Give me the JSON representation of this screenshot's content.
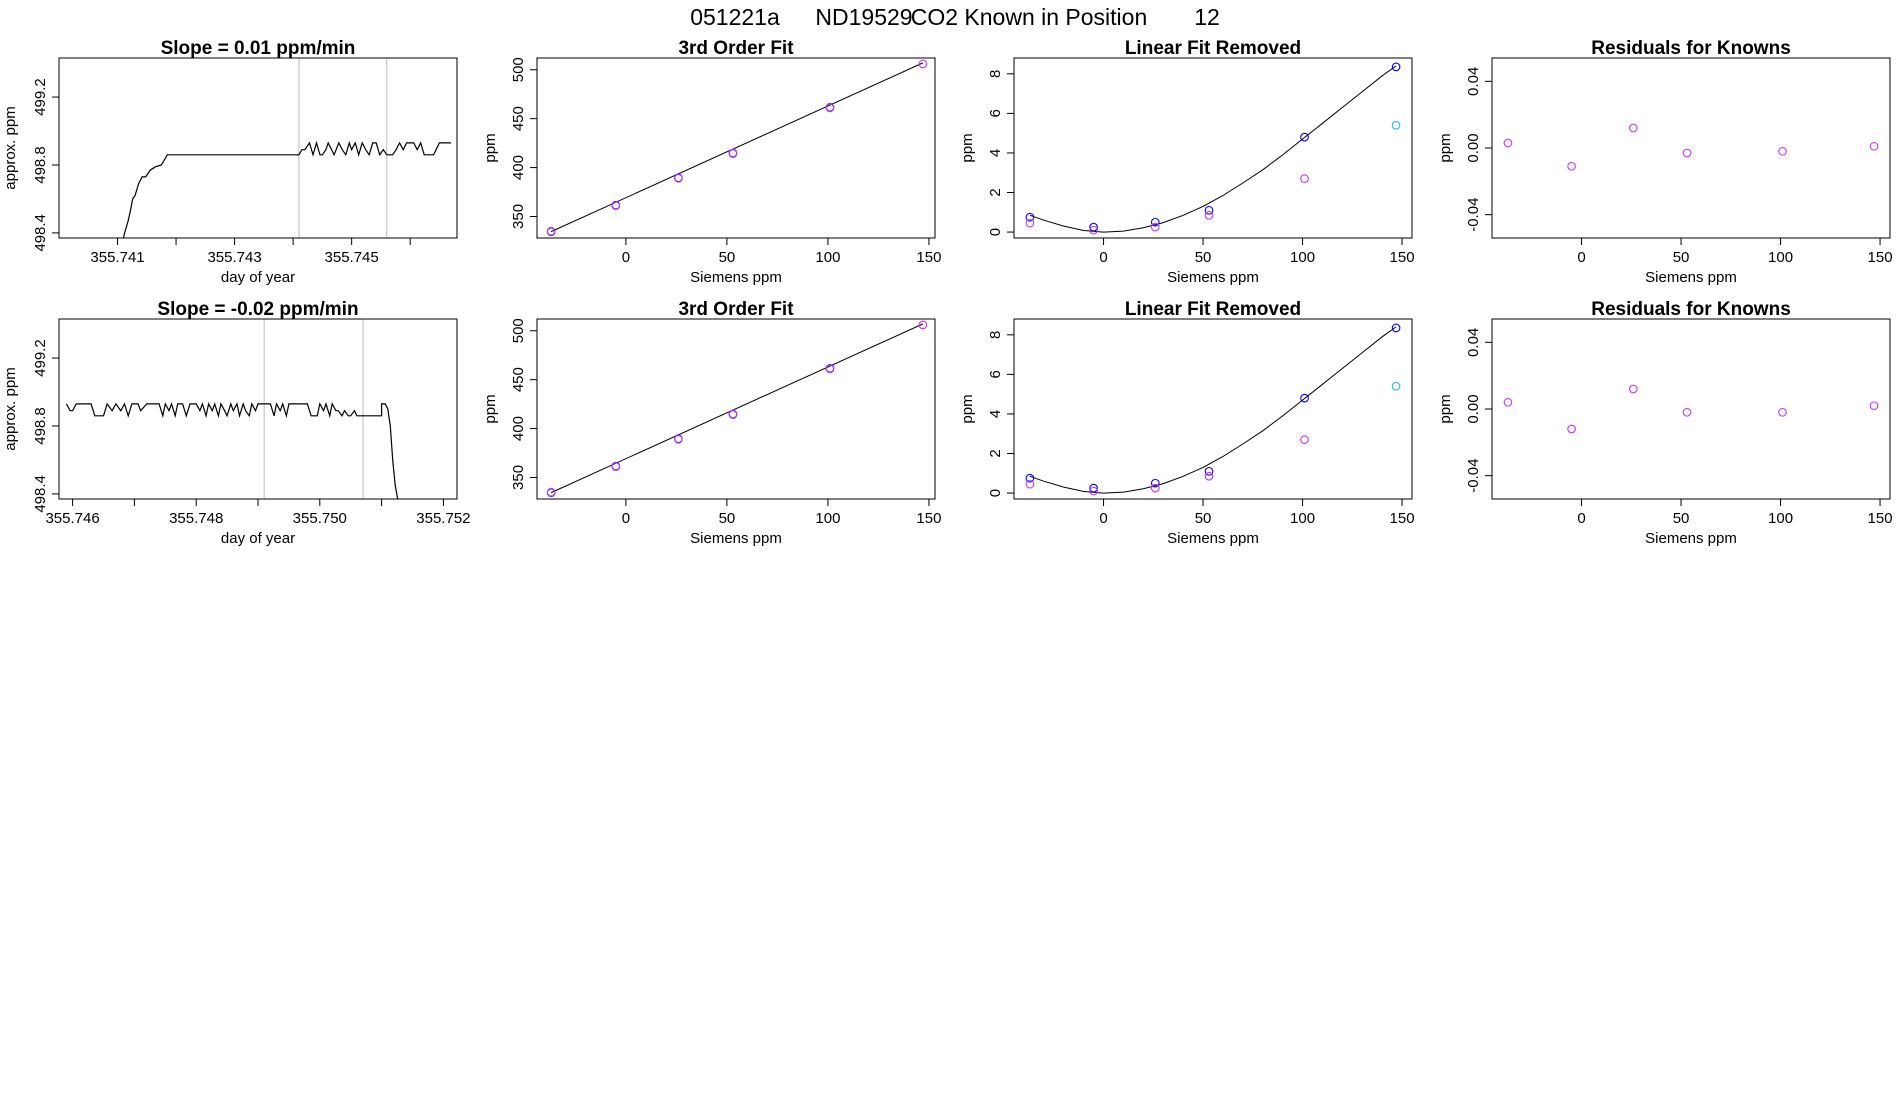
{
  "figure": {
    "title_parts": [
      "051221a",
      "ND19529",
      "CO2 Known in Position",
      "12"
    ]
  },
  "colors": {
    "line": "#000000",
    "guide": "#bebebe",
    "blue": "#0000ff",
    "magenta": "#cc33ff",
    "cyan": "#22bbee"
  },
  "chart_data": [
    {
      "type": "line",
      "title": "Slope =  0.01  ppm/min",
      "xlabel": "day of year",
      "ylabel": "approx. ppm",
      "xlim": [
        355.74,
        355.7468
      ],
      "ylim": [
        498.37,
        499.43
      ],
      "xticks": [
        355.741,
        355.742,
        355.743,
        355.744,
        355.745,
        355.746
      ],
      "xtick_labels": [
        "355.741",
        "",
        "355.743",
        "",
        "355.745",
        ""
      ],
      "yticks": [
        498.4,
        498.8,
        499.2
      ],
      "ytick_labels": [
        "498.4",
        "498.8",
        "499.2"
      ],
      "vlines": [
        355.7441,
        355.7456
      ],
      "series": [
        {
          "name": "CO2 trace",
          "x": [
            355.7411,
            355.74112,
            355.74118,
            355.74122,
            355.74126,
            355.7413,
            355.74136,
            355.74142,
            355.74148,
            355.74156,
            355.74165,
            355.74175,
            355.74185,
            355.742,
            355.7424,
            355.7428,
            355.7432,
            355.7436,
            355.7441,
            355.74415,
            355.7442,
            355.74428,
            355.74434,
            355.7444,
            355.74446,
            355.7445,
            355.74456,
            355.7446,
            355.7447,
            355.74478,
            355.74484,
            355.7449,
            355.74496,
            355.745,
            355.74506,
            355.74512,
            355.74518,
            355.74524,
            355.7453,
            355.74536,
            355.74542,
            355.74548,
            355.74554,
            355.7456,
            355.74566,
            355.7457,
            355.74576,
            355.74582,
            355.74588,
            355.74594,
            355.746,
            355.74606,
            355.74612,
            355.74618,
            355.74624,
            355.7463,
            355.74636,
            355.7464,
            355.7465,
            355.7466,
            355.7467
          ],
          "y": [
            498.37,
            498.4,
            498.47,
            498.53,
            498.6,
            498.62,
            498.69,
            498.73,
            498.73,
            498.77,
            498.79,
            498.8,
            498.86,
            498.86,
            498.86,
            498.86,
            498.86,
            498.86,
            498.86,
            498.89,
            498.89,
            498.93,
            498.86,
            498.93,
            498.86,
            498.86,
            498.89,
            498.93,
            498.86,
            498.93,
            498.89,
            498.86,
            498.93,
            498.89,
            498.93,
            498.86,
            498.93,
            498.89,
            498.86,
            498.93,
            498.93,
            498.86,
            498.89,
            498.86,
            498.86,
            498.86,
            498.89,
            498.93,
            498.89,
            498.93,
            498.93,
            498.93,
            498.89,
            498.93,
            498.86,
            498.86,
            498.86,
            498.86,
            498.93,
            498.93,
            498.93
          ]
        }
      ]
    },
    {
      "type": "scatter",
      "title": "3rd Order Fit",
      "xlabel": "Siemens ppm",
      "ylabel": "ppm",
      "xlim": [
        -44,
        153
      ],
      "ylim": [
        328,
        512
      ],
      "xticks": [
        0,
        50,
        100,
        150
      ],
      "xtick_labels": [
        "0",
        "50",
        "100",
        "150"
      ],
      "yticks": [
        350,
        400,
        450,
        500
      ],
      "ytick_labels": [
        "350",
        "400",
        "450",
        "500"
      ],
      "fit_line": {
        "x": [
          -37,
          147
        ],
        "y": [
          334.5,
          507
        ]
      },
      "series": [
        {
          "name": "blue",
          "color": "blue",
          "x": [
            -37,
            -5,
            26,
            53,
            101
          ],
          "y": [
            334.5,
            361.5,
            389.5,
            414.5,
            461.5
          ]
        },
        {
          "name": "magenta",
          "color": "magenta",
          "x": [
            -37,
            -5,
            26,
            53,
            101,
            147
          ],
          "y": [
            335,
            361,
            389,
            415,
            461,
            506
          ]
        }
      ]
    },
    {
      "type": "scatter",
      "title": "Linear Fit Removed",
      "xlabel": "Siemens ppm",
      "ylabel": "ppm",
      "xlim": [
        -45,
        155
      ],
      "ylim": [
        -0.3,
        8.8
      ],
      "xticks": [
        0,
        50,
        100,
        150
      ],
      "xtick_labels": [
        "0",
        "50",
        "100",
        "150"
      ],
      "yticks": [
        0,
        2,
        4,
        6,
        8
      ],
      "ytick_labels": [
        "0",
        "2",
        "4",
        "6",
        "8"
      ],
      "fit_curve": {
        "x": [
          -37,
          -30,
          -20,
          -10,
          0,
          10,
          20,
          30,
          40,
          50,
          60,
          70,
          80,
          90,
          100,
          110,
          120,
          130,
          140,
          147
        ],
        "y": [
          0.85,
          0.6,
          0.3,
          0.08,
          0.0,
          0.05,
          0.22,
          0.48,
          0.85,
          1.3,
          1.85,
          2.48,
          3.15,
          3.9,
          4.7,
          5.5,
          6.3,
          7.1,
          7.9,
          8.4
        ]
      },
      "series": [
        {
          "name": "blue",
          "color": "blue",
          "x": [
            -37,
            -5,
            26,
            53,
            101,
            147
          ],
          "y": [
            0.75,
            0.25,
            0.5,
            1.1,
            4.8,
            8.35
          ]
        },
        {
          "name": "magenta",
          "color": "magenta",
          "x": [
            -37,
            -5,
            26,
            53,
            101
          ],
          "y": [
            0.45,
            0.1,
            0.25,
            0.85,
            2.7
          ]
        },
        {
          "name": "cyan",
          "color": "cyan",
          "x": [
            147
          ],
          "y": [
            5.4
          ]
        }
      ]
    },
    {
      "type": "scatter",
      "title": "Residuals for Knowns",
      "xlabel": "Siemens ppm",
      "ylabel": "ppm",
      "xlim": [
        -45,
        155
      ],
      "ylim": [
        -0.054,
        0.054
      ],
      "xticks": [
        0,
        50,
        100,
        150
      ],
      "xtick_labels": [
        "0",
        "50",
        "100",
        "150"
      ],
      "yticks": [
        -0.04,
        0.0,
        0.04
      ],
      "ytick_labels": [
        "-0.04",
        "0.00",
        "0.04"
      ],
      "series": [
        {
          "name": "magenta",
          "color": "magenta",
          "x": [
            -37,
            -5,
            26,
            53,
            101,
            147
          ],
          "y": [
            0.003,
            -0.011,
            0.012,
            -0.003,
            -0.002,
            0.001
          ]
        }
      ]
    },
    {
      "type": "line",
      "title": "Slope =  -0.02  ppm/min",
      "xlabel": "day of year",
      "ylabel": "approx. ppm",
      "xlim": [
        355.74578,
        355.75222
      ],
      "ylim": [
        498.37,
        499.43
      ],
      "xticks": [
        355.746,
        355.747,
        355.748,
        355.749,
        355.75,
        355.751,
        355.752
      ],
      "xtick_labels": [
        "355.746",
        "",
        "355.748",
        "",
        "355.750",
        "",
        "355.752"
      ],
      "yticks": [
        498.4,
        498.8,
        499.2
      ],
      "ytick_labels": [
        "498.4",
        "498.8",
        "499.2"
      ],
      "vlines": [
        355.7491,
        355.7507
      ],
      "series": [
        {
          "name": "CO2 trace",
          "x": [
            355.7459,
            355.74596,
            355.746,
            355.74606,
            355.74612,
            355.7462,
            355.7463,
            355.74636,
            355.7465,
            355.74656,
            355.74664,
            355.7467,
            355.74678,
            355.74684,
            355.7469,
            355.74696,
            355.747,
            355.74706,
            355.7471,
            355.7472,
            355.7473,
            355.74736,
            355.7474,
            355.74746,
            355.7475,
            355.74756,
            355.7476,
            355.74766,
            355.7477,
            355.74778,
            355.74784,
            355.7479,
            355.748,
            355.74806,
            355.7481,
            355.74816,
            355.7482,
            355.74826,
            355.7483,
            355.74836,
            355.7484,
            355.74846,
            355.7485,
            355.74856,
            355.7486,
            355.74866,
            355.7487,
            355.74876,
            355.7488,
            355.74886,
            355.7489,
            355.74896,
            355.749,
            355.7491,
            355.7492,
            355.74926,
            355.7493,
            355.74936,
            355.7494,
            355.74946,
            355.7495,
            355.7496,
            355.7497,
            355.7498,
            355.74986,
            355.7499,
            355.74996,
            355.75,
            355.75006,
            355.7501,
            355.75016,
            355.7502,
            355.75026,
            355.7503,
            355.75036,
            355.7504,
            355.75046,
            355.7505,
            355.75056,
            355.7506,
            355.75066,
            355.7507,
            355.7508,
            355.7509,
            355.75098,
            355.751,
            355.751,
            355.75106,
            355.7511,
            355.75114,
            355.75118,
            355.75122,
            355.75126
          ],
          "y": [
            498.93,
            498.89,
            498.89,
            498.93,
            498.93,
            498.93,
            498.93,
            498.86,
            498.86,
            498.93,
            498.89,
            498.93,
            498.89,
            498.93,
            498.86,
            498.93,
            498.93,
            498.93,
            498.89,
            498.93,
            498.93,
            498.93,
            498.93,
            498.86,
            498.93,
            498.89,
            498.93,
            498.86,
            498.93,
            498.93,
            498.86,
            498.93,
            498.93,
            498.89,
            498.93,
            498.86,
            498.93,
            498.89,
            498.93,
            498.86,
            498.93,
            498.89,
            498.86,
            498.93,
            498.89,
            498.93,
            498.86,
            498.93,
            498.89,
            498.86,
            498.93,
            498.89,
            498.93,
            498.93,
            498.93,
            498.86,
            498.93,
            498.89,
            498.93,
            498.86,
            498.93,
            498.93,
            498.93,
            498.93,
            498.86,
            498.86,
            498.86,
            498.93,
            498.89,
            498.93,
            498.86,
            498.93,
            498.89,
            498.89,
            498.86,
            498.89,
            498.86,
            498.86,
            498.89,
            498.86,
            498.86,
            498.86,
            498.86,
            498.86,
            498.86,
            498.86,
            498.93,
            498.93,
            498.9,
            498.8,
            498.6,
            498.45,
            498.37
          ]
        }
      ]
    },
    {
      "type": "scatter",
      "title": "3rd Order Fit",
      "xlabel": "Siemens ppm",
      "ylabel": "ppm",
      "xlim": [
        -44,
        153
      ],
      "ylim": [
        328,
        512
      ],
      "xticks": [
        0,
        50,
        100,
        150
      ],
      "xtick_labels": [
        "0",
        "50",
        "100",
        "150"
      ],
      "yticks": [
        350,
        400,
        450,
        500
      ],
      "ytick_labels": [
        "350",
        "400",
        "450",
        "500"
      ],
      "fit_line": {
        "x": [
          -37,
          147
        ],
        "y": [
          334.5,
          507
        ]
      },
      "series": [
        {
          "name": "blue",
          "color": "blue",
          "x": [
            -37,
            -5,
            26,
            53,
            101
          ],
          "y": [
            334.5,
            361.5,
            389.5,
            414.5,
            461.5
          ]
        },
        {
          "name": "magenta",
          "color": "magenta",
          "x": [
            -37,
            -5,
            26,
            53,
            101,
            147
          ],
          "y": [
            335,
            361,
            389,
            415,
            461,
            506
          ]
        }
      ]
    },
    {
      "type": "scatter",
      "title": "Linear Fit Removed",
      "xlabel": "Siemens ppm",
      "ylabel": "ppm",
      "xlim": [
        -45,
        155
      ],
      "ylim": [
        -0.3,
        8.8
      ],
      "xticks": [
        0,
        50,
        100,
        150
      ],
      "xtick_labels": [
        "0",
        "50",
        "100",
        "150"
      ],
      "yticks": [
        0,
        2,
        4,
        6,
        8
      ],
      "ytick_labels": [
        "0",
        "2",
        "4",
        "6",
        "8"
      ],
      "fit_curve": {
        "x": [
          -37,
          -30,
          -20,
          -10,
          0,
          10,
          20,
          30,
          40,
          50,
          60,
          70,
          80,
          90,
          100,
          110,
          120,
          130,
          140,
          147
        ],
        "y": [
          0.85,
          0.6,
          0.3,
          0.08,
          0.0,
          0.05,
          0.22,
          0.48,
          0.85,
          1.3,
          1.85,
          2.48,
          3.15,
          3.9,
          4.7,
          5.5,
          6.3,
          7.1,
          7.9,
          8.4
        ]
      },
      "series": [
        {
          "name": "blue",
          "color": "blue",
          "x": [
            -37,
            -5,
            26,
            53,
            101,
            147
          ],
          "y": [
            0.75,
            0.25,
            0.5,
            1.1,
            4.8,
            8.35
          ]
        },
        {
          "name": "magenta",
          "color": "magenta",
          "x": [
            -37,
            -5,
            26,
            53,
            101
          ],
          "y": [
            0.45,
            0.1,
            0.25,
            0.85,
            2.7
          ]
        },
        {
          "name": "cyan",
          "color": "cyan",
          "x": [
            147
          ],
          "y": [
            5.4
          ]
        }
      ]
    },
    {
      "type": "scatter",
      "title": "Residuals for Knowns",
      "xlabel": "Siemens ppm",
      "ylabel": "ppm",
      "xlim": [
        -45,
        155
      ],
      "ylim": [
        -0.054,
        0.054
      ],
      "xticks": [
        0,
        50,
        100,
        150
      ],
      "xtick_labels": [
        "0",
        "50",
        "100",
        "150"
      ],
      "yticks": [
        -0.04,
        0.0,
        0.04
      ],
      "ytick_labels": [
        "-0.04",
        "0.00",
        "0.04"
      ],
      "series": [
        {
          "name": "magenta",
          "color": "magenta",
          "x": [
            -37,
            -5,
            26,
            53,
            101,
            147
          ],
          "y": [
            0.004,
            -0.012,
            0.012,
            -0.002,
            -0.002,
            0.002
          ]
        }
      ]
    }
  ]
}
